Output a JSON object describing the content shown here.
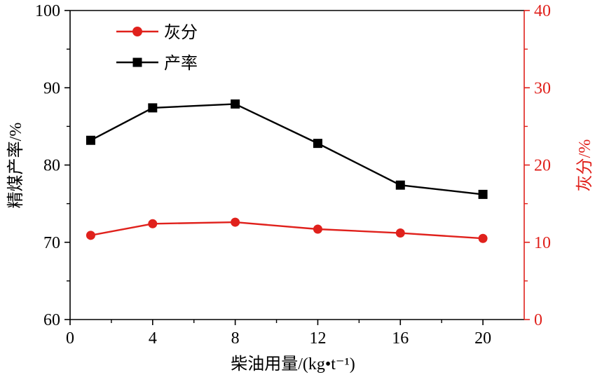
{
  "chart_data": {
    "type": "line",
    "x": [
      1,
      4,
      8,
      12,
      16,
      20
    ],
    "xlabel": "柴油用量/(kg•t⁻¹)",
    "xlim": [
      0,
      22
    ],
    "xticks": [
      "0",
      "4",
      "8",
      "12",
      "16",
      "20"
    ],
    "ylabel_left": "精煤产率/%",
    "ylim_left": [
      60,
      100
    ],
    "yticks_left": [
      "60",
      "70",
      "80",
      "90",
      "100"
    ],
    "ylabel_right": "灰分/%",
    "ylim_right": [
      0,
      40
    ],
    "yticks_right": [
      "0",
      "10",
      "20",
      "30",
      "40"
    ],
    "series": [
      {
        "name": "灰分",
        "axis": "right",
        "color": "#e0211c",
        "marker": "circle",
        "values": [
          10.9,
          12.4,
          12.6,
          11.7,
          11.2,
          10.5
        ]
      },
      {
        "name": "产率",
        "axis": "left",
        "color": "#000000",
        "marker": "square",
        "values": [
          83.2,
          87.4,
          87.9,
          82.8,
          77.4,
          76.2
        ]
      }
    ],
    "legend": {
      "position": "top-left"
    },
    "grid": false,
    "right_axis_color": "#e0211c"
  }
}
